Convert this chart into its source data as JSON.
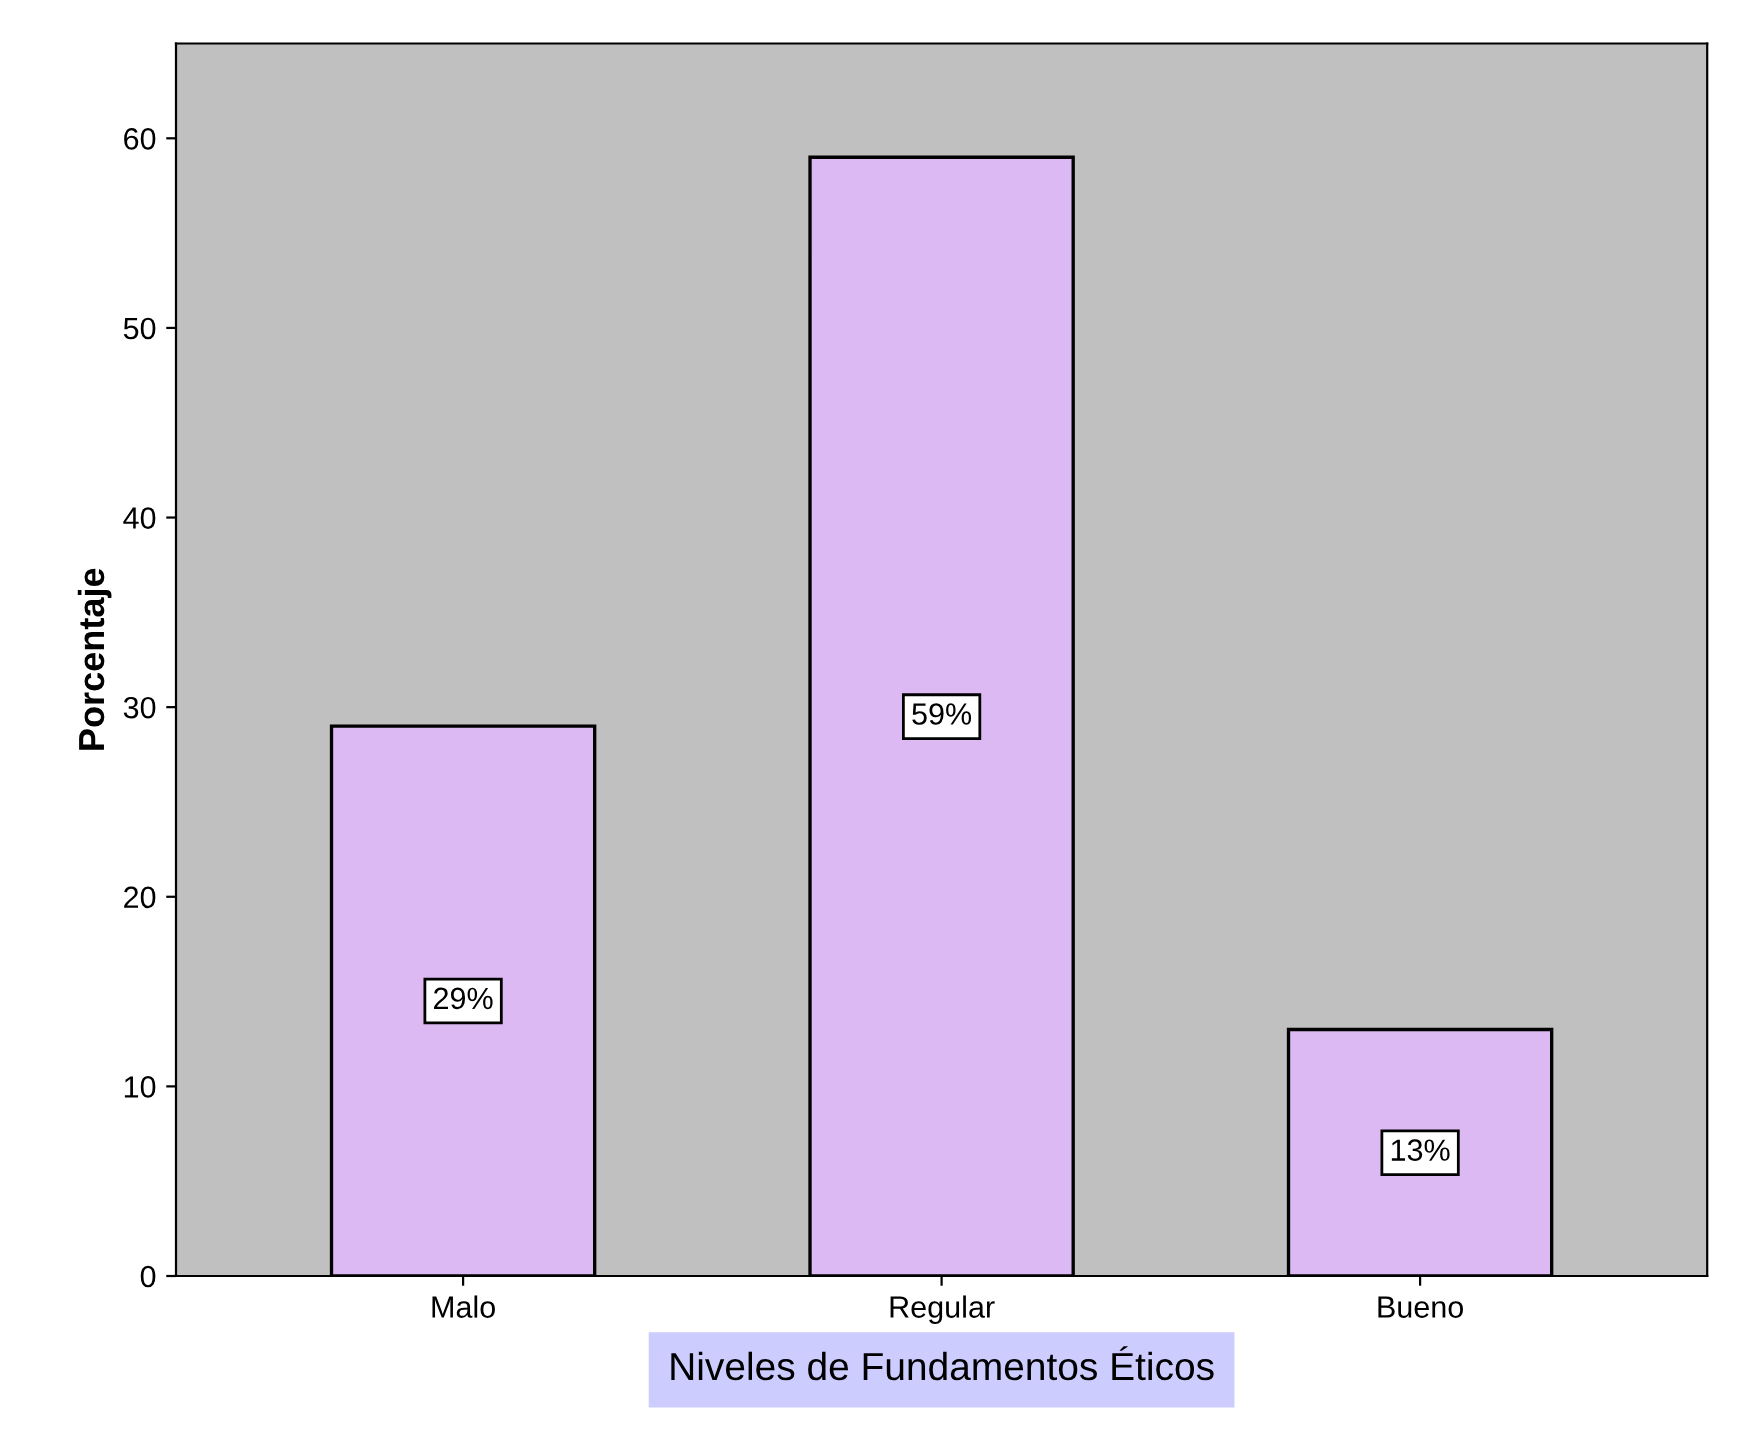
{
  "chart_data": {
    "type": "bar",
    "categories": [
      "Malo",
      "Regular",
      "Bueno"
    ],
    "values": [
      29,
      59,
      13
    ],
    "value_labels": [
      "29%",
      "59%",
      "13%"
    ],
    "color": "#ddb9f3",
    "xlabel": "Niveles de Fundamentos Éticos",
    "ylabel": "Porcentaje",
    "ylim": [
      0,
      65
    ],
    "yticks": [
      0,
      10,
      20,
      30,
      40,
      50,
      60
    ],
    "grid": false,
    "legend": false
  }
}
